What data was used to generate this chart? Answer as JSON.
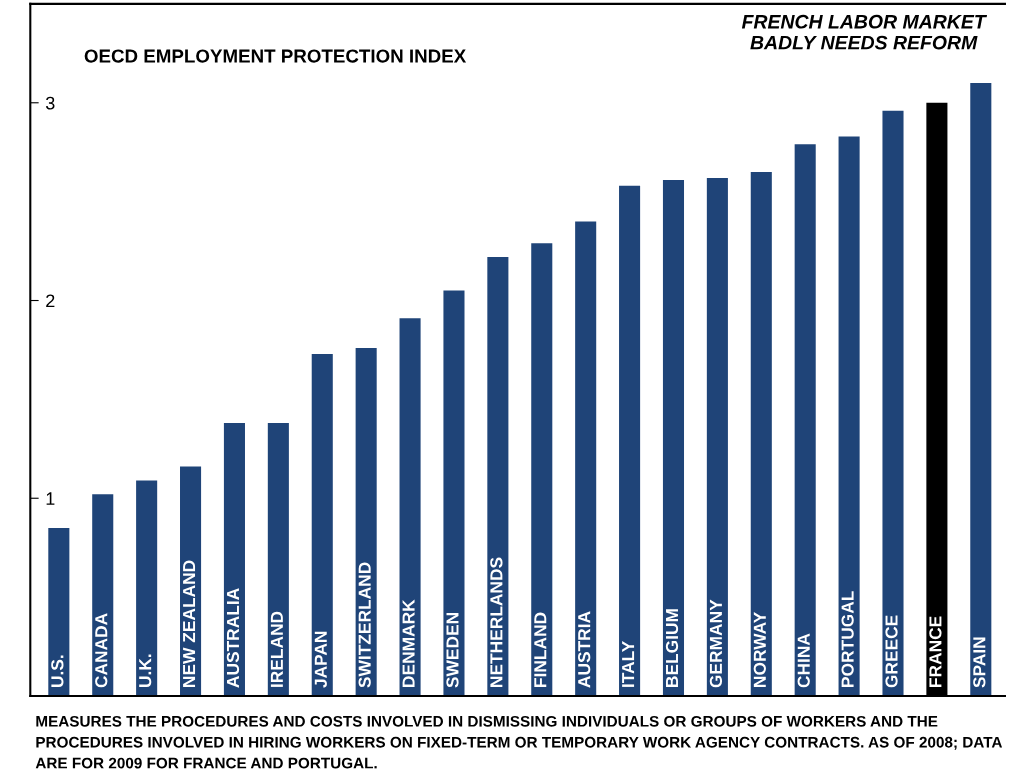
{
  "chart_data": {
    "type": "bar",
    "title": "OECD EMPLOYMENT PROTECTION INDEX",
    "subtitle": "FRENCH LABOR MARKET\nBADLY NEEDS REFORM",
    "categories": [
      "U.S.",
      "CANADA",
      "U.K.",
      "NEW ZEALAND",
      "AUSTRALIA",
      "IRELAND",
      "JAPAN",
      "SWITZERLAND",
      "DENMARK",
      "SWEDEN",
      "NETHERLANDS",
      "FINLAND",
      "AUSTRIA",
      "ITALY",
      "BELGIUM",
      "GERMANY",
      "NORWAY",
      "CHINA",
      "PORTUGAL",
      "GREECE",
      "FRANCE",
      "SPAIN"
    ],
    "values": [
      0.85,
      1.02,
      1.09,
      1.16,
      1.38,
      1.38,
      1.73,
      1.76,
      1.91,
      2.05,
      2.22,
      2.29,
      2.4,
      2.58,
      2.61,
      2.62,
      2.65,
      2.79,
      2.83,
      2.96,
      3.0,
      3.1
    ],
    "colors": [
      "#1f4478",
      "#1f4478",
      "#1f4478",
      "#1f4478",
      "#1f4478",
      "#1f4478",
      "#1f4478",
      "#1f4478",
      "#1f4478",
      "#1f4478",
      "#1f4478",
      "#1f4478",
      "#1f4478",
      "#1f4478",
      "#1f4478",
      "#1f4478",
      "#1f4478",
      "#1f4478",
      "#1f4478",
      "#1f4478",
      "#000000",
      "#1f4478"
    ],
    "ylim": [
      0,
      3.5
    ],
    "yticks": [
      1,
      2,
      3
    ],
    "grid": false,
    "annotations": [
      "MEASURES THE PROCEDURES AND COSTS INVOLVED IN DISMISSING INDIVIDUALS OR GROUPS OF WORKERS AND THE PROCEDURES INVOLVED IN HIRING WORKERS ON FIXED-TERM OR TEMPORARY WORK AGENCY CONTRACTS. AS OF 2008; DATA ARE FOR 2009 FOR FRANCE AND PORTUGAL."
    ]
  }
}
